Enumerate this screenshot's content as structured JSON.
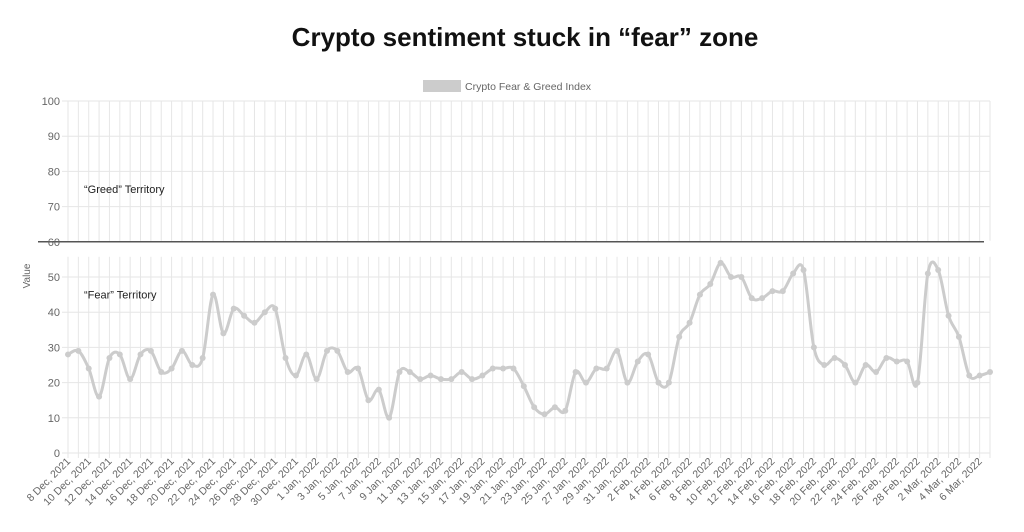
{
  "chart_data": {
    "type": "line",
    "title": "Crypto sentiment stuck in “fear” zone",
    "ylabel": "Value",
    "xlabel": "",
    "ylim": [
      0,
      100
    ],
    "yticks": [
      0,
      10,
      20,
      30,
      40,
      50,
      60,
      70,
      80,
      90,
      100
    ],
    "grid": true,
    "legend_position": "top-center",
    "series": [
      {
        "name": "Crypto Fear & Greed Index",
        "color": "#cccccc",
        "values": [
          28,
          29,
          24,
          16,
          27,
          28,
          21,
          28,
          29,
          23,
          24,
          29,
          25,
          27,
          45,
          34,
          41,
          39,
          37,
          40,
          41,
          27,
          22,
          28,
          21,
          29,
          29,
          23,
          24,
          15,
          18,
          10,
          23,
          23,
          21,
          22,
          21,
          21,
          23,
          21,
          22,
          24,
          24,
          24,
          19,
          13,
          11,
          13,
          12,
          23,
          20,
          24,
          24,
          29,
          20,
          26,
          28,
          20,
          20,
          33,
          37,
          45,
          48,
          54,
          50,
          50,
          44,
          44,
          46,
          46,
          51,
          52,
          30,
          25,
          27,
          25,
          20,
          25,
          23,
          27,
          26,
          26,
          20,
          51,
          52,
          39,
          33,
          22,
          22,
          23
        ]
      }
    ],
    "x_tick_labels": [
      "8 Dec, 2021",
      "10 Dec, 2021",
      "12 Dec, 2021",
      "14 Dec, 2021",
      "16 Dec, 2021",
      "18 Dec, 2021",
      "20 Dec, 2021",
      "22 Dec, 2021",
      "24 Dec, 2021",
      "26 Dec, 2021",
      "28 Dec, 2021",
      "30 Dec, 2021",
      "1 Jan, 2022",
      "3 Jan, 2022",
      "5 Jan, 2022",
      "7 Jan, 2022",
      "9 Jan, 2022",
      "11 Jan, 2022",
      "13 Jan, 2022",
      "15 Jan, 2022",
      "17 Jan, 2022",
      "19 Jan, 2022",
      "21 Jan, 2022",
      "23 Jan, 2022",
      "25 Jan, 2022",
      "27 Jan, 2022",
      "29 Jan, 2022",
      "31 Jan, 2022",
      "2 Feb, 2022",
      "4 Feb, 2022",
      "6 Feb, 2022",
      "8 Feb, 2022",
      "10 Feb, 2022",
      "12 Feb, 2022",
      "14 Feb, 2022",
      "16 Feb, 2022",
      "18 Feb, 2022",
      "20 Feb, 2022",
      "22 Feb, 2022",
      "24 Feb, 2022",
      "26 Feb, 2022",
      "28 Feb, 2022",
      "2 Mar, 2022",
      "4 Mar, 2022",
      "6 Mar, 2022"
    ],
    "threshold": {
      "value": 60,
      "color": "#555555"
    },
    "annotations": [
      {
        "text": "“Greed” Territory",
        "y": 75
      },
      {
        "text": "“Fear” Territory",
        "y": 45
      }
    ]
  }
}
